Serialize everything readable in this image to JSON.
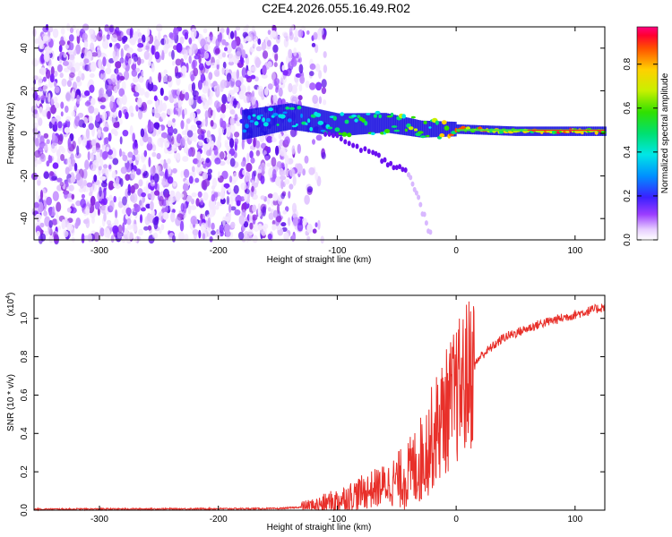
{
  "title": "C2E4.2026.055.16.49.R02",
  "chart_data": [
    {
      "type": "heatmap",
      "name": "spectrogram",
      "xlabel": "Height of straight line (km)",
      "ylabel": "Frequency (Hz)",
      "xlim": [
        -355,
        125
      ],
      "ylim": [
        -50,
        50
      ],
      "xticks": [
        -300,
        -200,
        -100,
        0,
        100
      ],
      "yticks": [
        -40,
        -20,
        0,
        20,
        40
      ],
      "colorbar": {
        "label": "Normalized spectral amplitude",
        "range": [
          0,
          0.97
        ],
        "ticks": [
          0.0,
          0.2,
          0.4,
          0.6,
          0.8
        ]
      },
      "features": {
        "noise_region_x": [
          -355,
          -130
        ],
        "carrier_track": [
          {
            "x": -180,
            "f": 4,
            "amp": 0.3
          },
          {
            "x": -140,
            "f": 8,
            "amp": 0.4
          },
          {
            "x": -100,
            "f": 4,
            "amp": 0.5
          },
          {
            "x": -60,
            "f": 5,
            "amp": 0.5
          },
          {
            "x": -30,
            "f": 2,
            "amp": 0.6
          },
          {
            "x": 0,
            "f": 2,
            "amp": 0.75
          },
          {
            "x": 50,
            "f": 1,
            "amp": 0.75
          },
          {
            "x": 100,
            "f": 1,
            "amp": 0.8
          },
          {
            "x": 125,
            "f": 1,
            "amp": 0.85
          }
        ],
        "secondary_branch": [
          {
            "x": -110,
            "f": 0
          },
          {
            "x": -70,
            "f": -10
          },
          {
            "x": -40,
            "f": -18
          },
          {
            "x": -20,
            "f": -50
          }
        ]
      }
    },
    {
      "type": "line",
      "name": "snr",
      "xlabel": "Height of straight line (km)",
      "ylabel": "SNR (10 * v/v)",
      "scale_label": "(x10",
      "scale_exp": "4",
      "scale_close": ")",
      "xlim": [
        -355,
        125
      ],
      "ylim": [
        0,
        1.12
      ],
      "xticks": [
        -300,
        -200,
        -100,
        0,
        100
      ],
      "yticks": [
        0.0,
        0.2,
        0.4,
        0.6,
        0.8,
        1.0
      ],
      "color": "#e8302a",
      "trend": [
        {
          "x": -355,
          "y": 0.005
        },
        {
          "x": -150,
          "y": 0.008
        },
        {
          "x": -120,
          "y": 0.02
        },
        {
          "x": -100,
          "y": 0.05
        },
        {
          "x": -80,
          "y": 0.09
        },
        {
          "x": -60,
          "y": 0.13
        },
        {
          "x": -40,
          "y": 0.18
        },
        {
          "x": -30,
          "y": 0.26
        },
        {
          "x": -20,
          "y": 0.38
        },
        {
          "x": -10,
          "y": 0.5
        },
        {
          "x": 0,
          "y": 0.6
        },
        {
          "x": 10,
          "y": 0.7
        },
        {
          "x": 20,
          "y": 0.8
        },
        {
          "x": 40,
          "y": 0.9
        },
        {
          "x": 70,
          "y": 0.97
        },
        {
          "x": 100,
          "y": 1.02
        },
        {
          "x": 125,
          "y": 1.06
        }
      ]
    }
  ]
}
